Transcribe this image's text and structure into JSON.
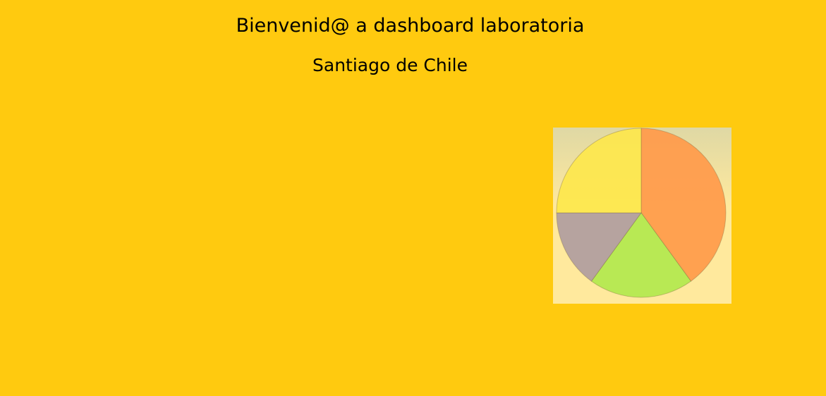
{
  "header": {
    "title": "Bienvenid@ a dashboard laboratoria",
    "subtitle": "Santiago de Chile"
  },
  "chart_data": {
    "type": "pie",
    "slices": [
      {
        "value": 40,
        "color": "#ff9a4a"
      },
      {
        "value": 20,
        "color": "#b2e84e"
      },
      {
        "value": 15,
        "color": "#b09ca0"
      },
      {
        "value": 25,
        "color": "#fde74c"
      }
    ],
    "start": "12 o'clock",
    "direction": "clockwise",
    "legend": "none"
  },
  "colors": {
    "background": "#ffca0f",
    "panel": "#ffe99d"
  }
}
